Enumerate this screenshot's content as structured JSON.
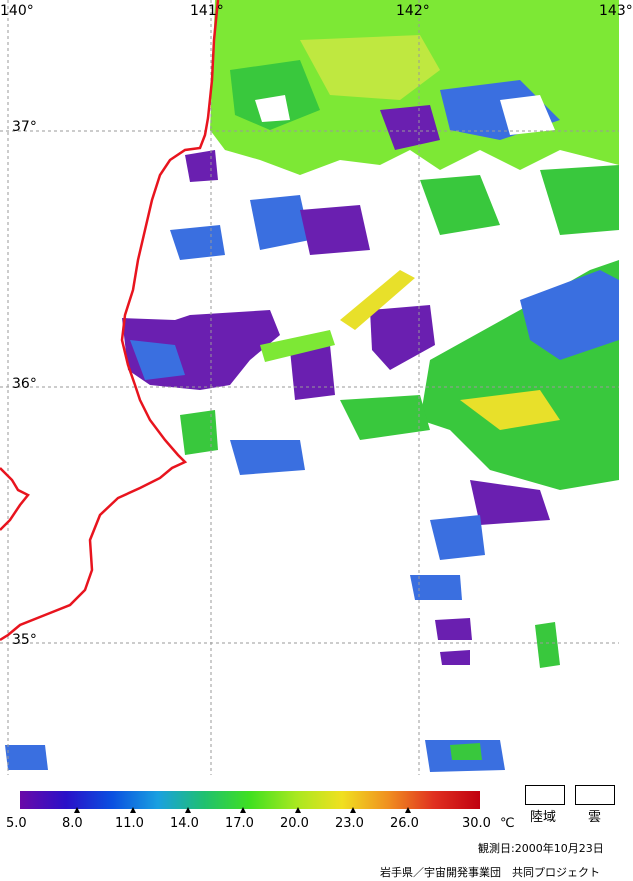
{
  "map": {
    "lon_labels": [
      "140°",
      "141°",
      "142°",
      "143°"
    ],
    "lat_labels": [
      "37°",
      "36°",
      "35°"
    ],
    "colors": {
      "coast": "#e8141e",
      "grid": "#9a9a9a",
      "warm": "#7de835",
      "mid": "#39c83d",
      "cool": "#3a6fe0",
      "cold": "#6a1fb0",
      "hot": "#e8e02a"
    }
  },
  "colorbar": {
    "ticks": [
      "5.0",
      "8.0",
      "11.0",
      "14.0",
      "17.0",
      "20.0",
      "23.0",
      "26.0",
      "30.0"
    ],
    "unit": "℃",
    "stops": [
      "#6a0aa8",
      "#2a10c8",
      "#0a50e0",
      "#1aa0e0",
      "#20c070",
      "#40e020",
      "#a8e820",
      "#f0e020",
      "#f09020",
      "#e03020",
      "#c00010"
    ]
  },
  "legend": {
    "land_label": "陸域",
    "cloud_label": "雲"
  },
  "footer": {
    "date_text": "観測日:2000年10月23日",
    "credit_text": "岩手県／宇宙開発事業団　共同プロジェクト"
  }
}
